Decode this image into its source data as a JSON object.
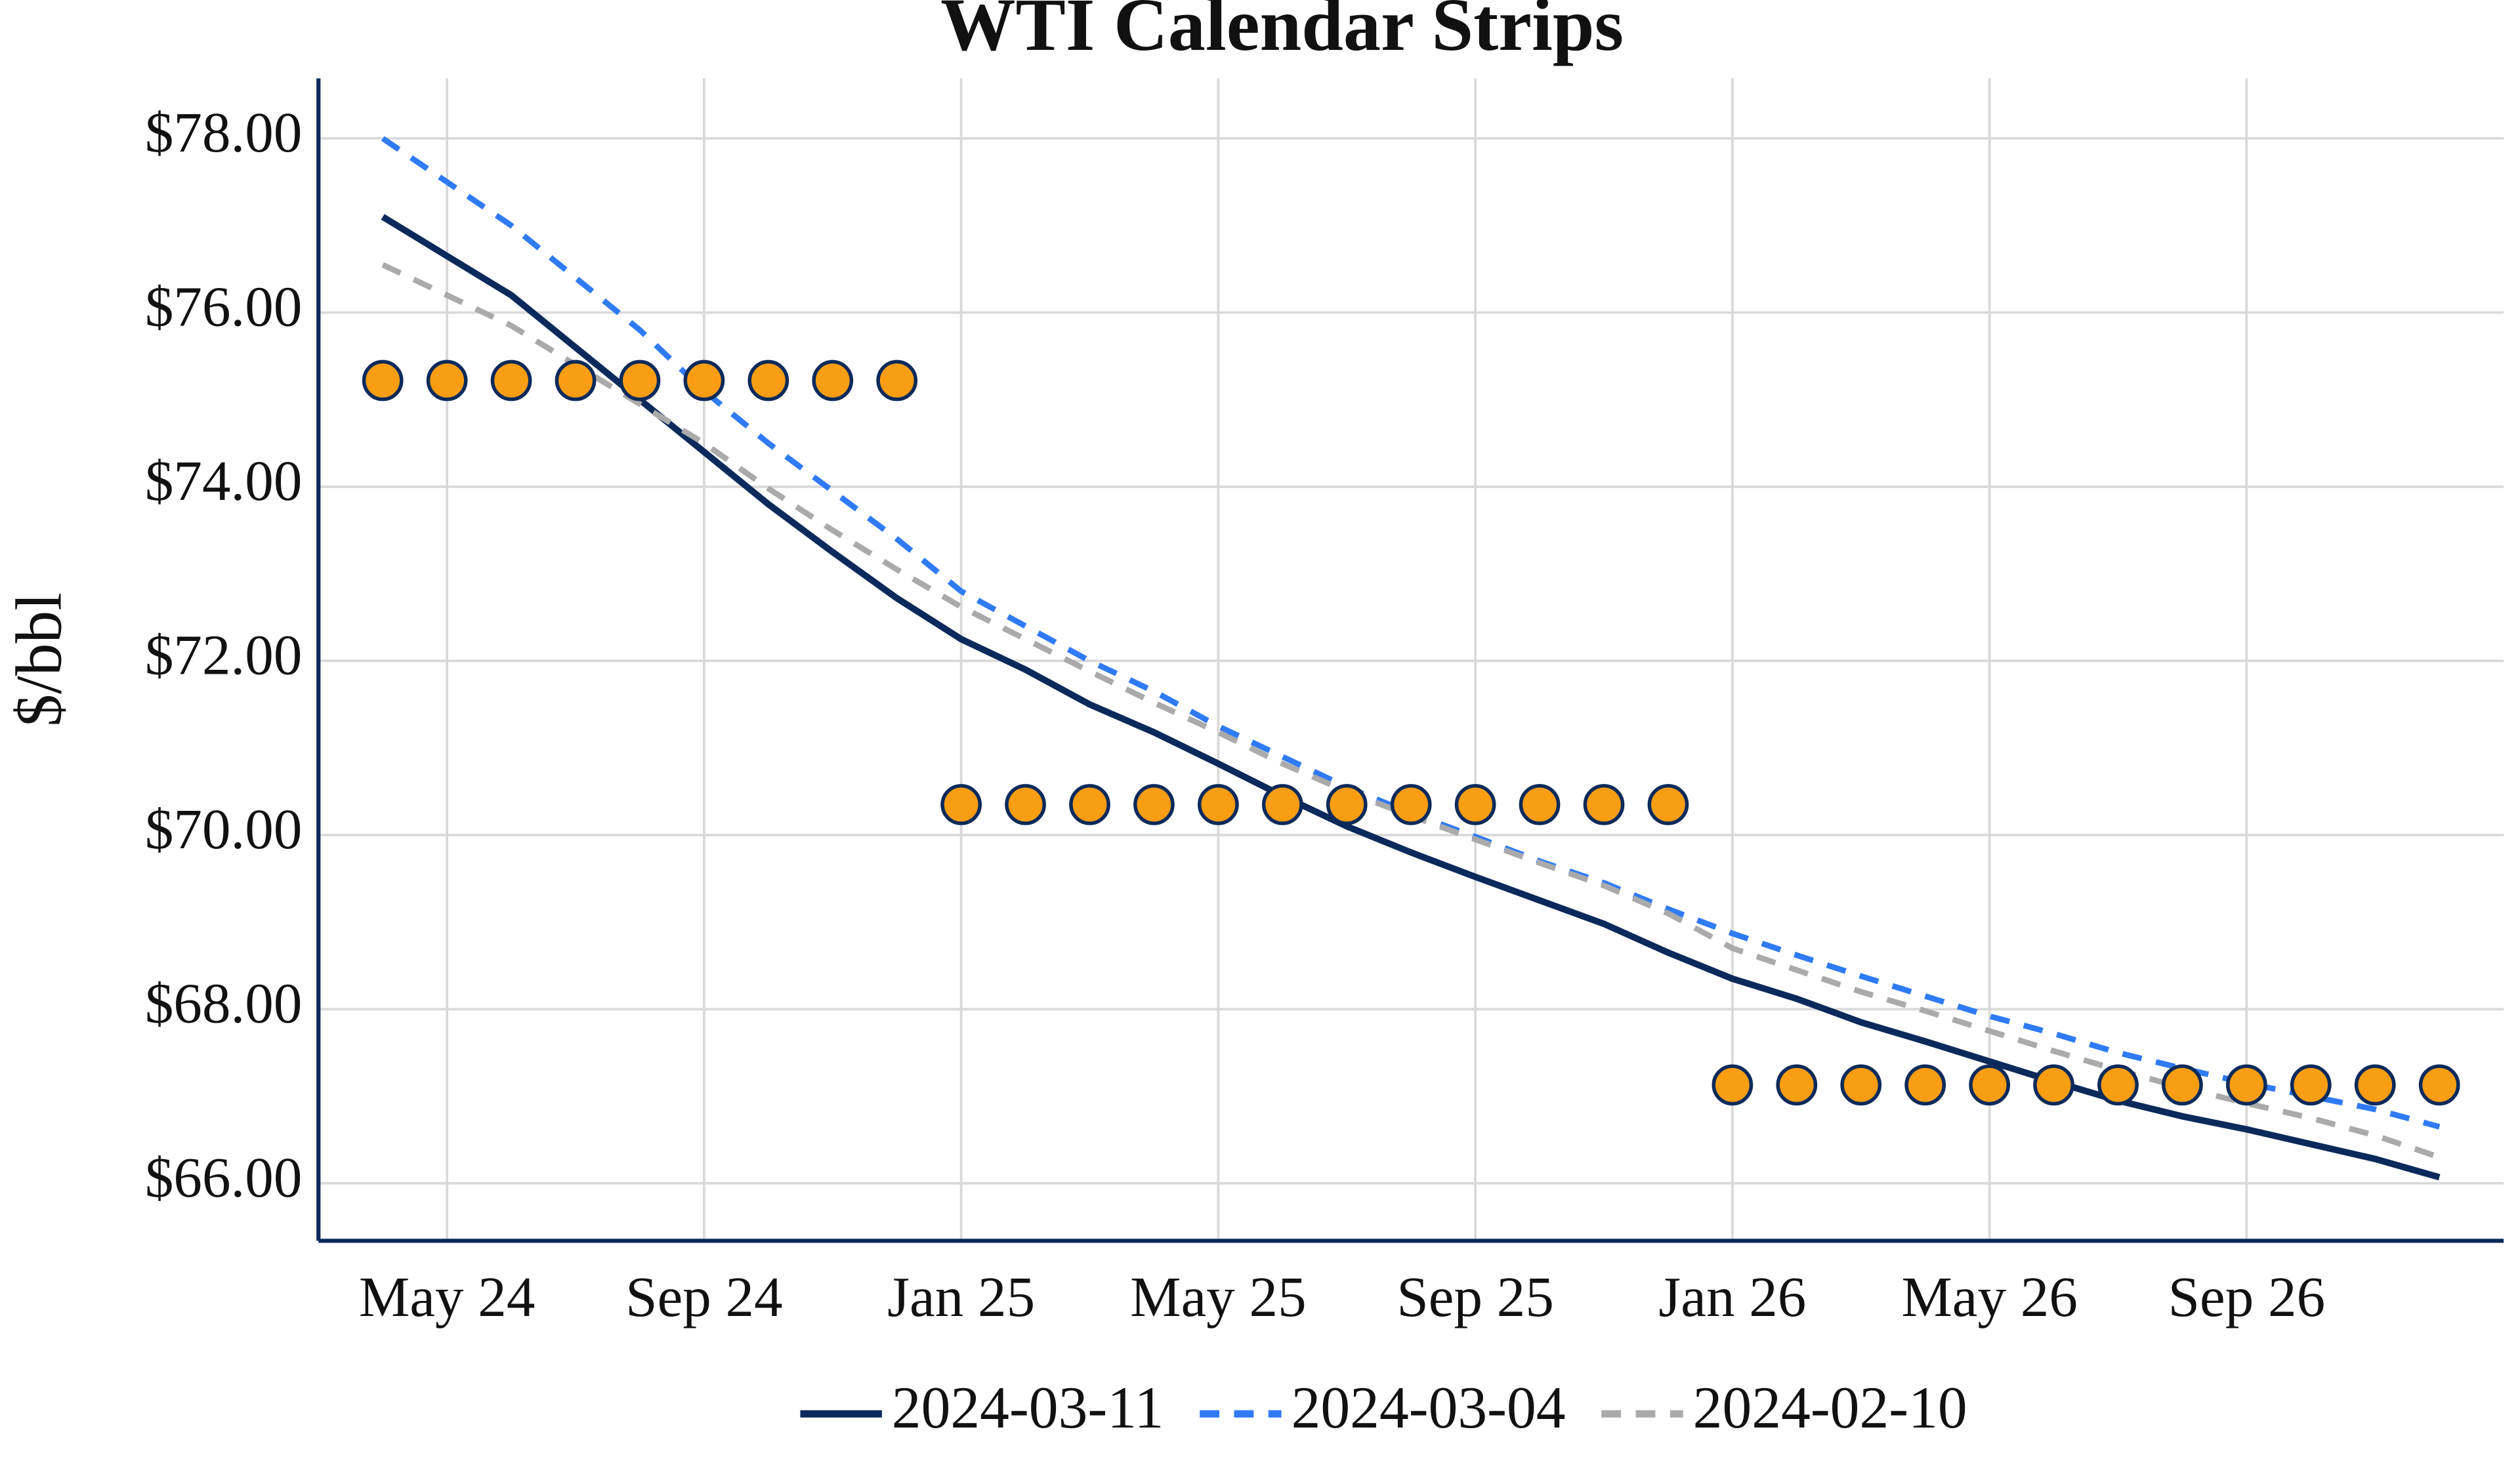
{
  "chart_data": {
    "type": "line",
    "title": "WTI Calendar Strips",
    "y_label": "$/bbl",
    "x": [
      "2024-04",
      "2024-05",
      "2024-06",
      "2024-07",
      "2024-08",
      "2024-09",
      "2024-10",
      "2024-11",
      "2024-12",
      "2025-01",
      "2025-02",
      "2025-03",
      "2025-04",
      "2025-05",
      "2025-06",
      "2025-07",
      "2025-08",
      "2025-09",
      "2025-10",
      "2025-11",
      "2025-12",
      "2026-01",
      "2026-02",
      "2026-03",
      "2026-04",
      "2026-05",
      "2026-06",
      "2026-07",
      "2026-08",
      "2026-09",
      "2026-10",
      "2026-11",
      "2026-12"
    ],
    "xlim": [
      "2024-03",
      "2027-01"
    ],
    "xticks": [
      {
        "value": "2024-05",
        "label": "May 24"
      },
      {
        "value": "2024-09",
        "label": "Sep 24"
      },
      {
        "value": "2025-01",
        "label": "Jan 25"
      },
      {
        "value": "2025-05",
        "label": "May 25"
      },
      {
        "value": "2025-09",
        "label": "Sep 25"
      },
      {
        "value": "2026-01",
        "label": "Jan 26"
      },
      {
        "value": "2026-05",
        "label": "May 26"
      },
      {
        "value": "2026-09",
        "label": "Sep 26"
      }
    ],
    "ylim": [
      65.34,
      78.69
    ],
    "yticks": [
      {
        "value": 66,
        "label": "$66.00"
      },
      {
        "value": 68,
        "label": "$68.00"
      },
      {
        "value": 70,
        "label": "$70.00"
      },
      {
        "value": 72,
        "label": "$72.00"
      },
      {
        "value": 74,
        "label": "$74.00"
      },
      {
        "value": 76,
        "label": "$76.00"
      },
      {
        "value": 78,
        "label": "$78.00"
      }
    ],
    "grid": true,
    "legend": "bottom",
    "series": [
      {
        "name": "2024-03-11",
        "color": "#0b2a5b",
        "style": "solid",
        "values": [
          77.1,
          76.65,
          76.2,
          75.6,
          75.0,
          74.4,
          73.8,
          73.25,
          72.72,
          72.25,
          71.9,
          71.5,
          71.18,
          70.82,
          70.45,
          70.1,
          69.8,
          69.52,
          69.25,
          68.98,
          68.65,
          68.35,
          68.12,
          67.85,
          67.63,
          67.4,
          67.17,
          66.95,
          66.77,
          66.62,
          66.45,
          66.28,
          66.07
        ]
      },
      {
        "name": "2024-03-04",
        "color": "#2f7bf6",
        "style": "dashed",
        "values": [
          78.0,
          77.5,
          77.0,
          76.4,
          75.8,
          75.1,
          74.5,
          73.95,
          73.4,
          72.8,
          72.4,
          72.0,
          71.65,
          71.25,
          70.9,
          70.55,
          70.25,
          69.98,
          69.7,
          69.45,
          69.15,
          68.87,
          68.62,
          68.38,
          68.15,
          67.92,
          67.72,
          67.5,
          67.32,
          67.15,
          67.0,
          66.85,
          66.65
        ]
      },
      {
        "name": "2024-02-10",
        "color": "#aaaaaa",
        "style": "dashed",
        "values": [
          76.55,
          76.2,
          75.85,
          75.4,
          74.95,
          74.5,
          73.98,
          73.5,
          73.05,
          72.62,
          72.25,
          71.88,
          71.52,
          71.18,
          70.82,
          70.5,
          70.22,
          69.95,
          69.68,
          69.42,
          69.1,
          68.7,
          68.45,
          68.2,
          67.98,
          67.75,
          67.52,
          67.3,
          67.1,
          66.92,
          66.75,
          66.55,
          66.3
        ]
      }
    ],
    "strips": {
      "color": "#f99d12",
      "edge_color": "#0b2a5b",
      "values": [
        75.22,
        75.22,
        75.22,
        75.22,
        75.22,
        75.22,
        75.22,
        75.22,
        75.22,
        70.35,
        70.35,
        70.35,
        70.35,
        70.35,
        70.35,
        70.35,
        70.35,
        70.35,
        70.35,
        70.35,
        70.35,
        67.13,
        67.13,
        67.13,
        67.13,
        67.13,
        67.13,
        67.13,
        67.13,
        67.13,
        67.13,
        67.13,
        67.13
      ]
    }
  }
}
